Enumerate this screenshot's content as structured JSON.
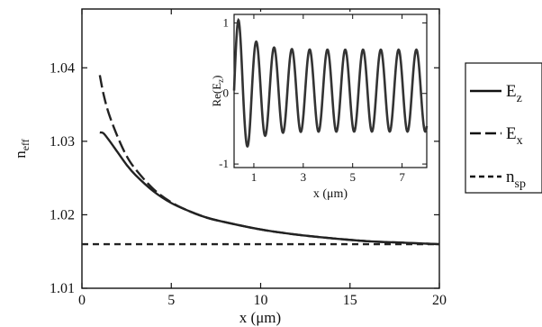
{
  "chart_data": [
    {
      "type": "line",
      "title": "",
      "xlabel": "x (μm)",
      "ylabel": "n",
      "ylabel_sub": "eff",
      "xlim": [
        0,
        20
      ],
      "ylim": [
        1.01,
        1.048
      ],
      "x_ticks": [
        0,
        5,
        10,
        15,
        20
      ],
      "x_tick_labels": [
        "0",
        "5",
        "10",
        "15",
        "20"
      ],
      "y_ticks": [
        1.01,
        1.02,
        1.03,
        1.04
      ],
      "y_tick_labels": [
        "1.01",
        "1.02",
        "1.03",
        "1.04"
      ],
      "grid": false,
      "legend_position": "outside-right",
      "series": [
        {
          "name": "E",
          "name_sub": "z",
          "style": "solid",
          "color": "#222222",
          "x": [
            1.0,
            1.2,
            1.5,
            2,
            2.5,
            3,
            4,
            5,
            6,
            7,
            8,
            10,
            12,
            14,
            16,
            18,
            20
          ],
          "y": [
            1.0312,
            1.0311,
            1.0302,
            1.0285,
            1.0268,
            1.0254,
            1.0232,
            1.0216,
            1.0205,
            1.0196,
            1.019,
            1.018,
            1.0173,
            1.0168,
            1.0164,
            1.0162,
            1.016
          ]
        },
        {
          "name": "E",
          "name_sub": "x",
          "style": "dash-long",
          "color": "#222222",
          "x": [
            1.0,
            1.2,
            1.5,
            2,
            2.5,
            3,
            4,
            5,
            6,
            7,
            8,
            10,
            12,
            14,
            16,
            18,
            20
          ],
          "y": [
            1.039,
            1.0365,
            1.0338,
            1.0306,
            1.028,
            1.0262,
            1.0235,
            1.0217,
            1.0205,
            1.0196,
            1.019,
            1.018,
            1.0173,
            1.0168,
            1.0164,
            1.0162,
            1.016
          ]
        },
        {
          "name": "n",
          "name_sub": "sp",
          "style": "dash-short",
          "color": "#222222",
          "x": [
            0,
            20
          ],
          "y": [
            1.016,
            1.016
          ]
        }
      ]
    },
    {
      "type": "line",
      "title": "",
      "placement": "inset",
      "xlabel": "x (μm)",
      "ylabel": "Re(E",
      "ylabel_sub": "z",
      "ylabel_tail": ")",
      "xlim": [
        0.2,
        8.0
      ],
      "ylim": [
        -1.05,
        1.12
      ],
      "x_ticks": [
        1,
        3,
        5,
        7
      ],
      "x_tick_labels": [
        "1",
        "3",
        "5",
        "7"
      ],
      "y_ticks": [
        -1,
        0,
        1
      ],
      "y_tick_labels": [
        "-1",
        "0",
        "1"
      ],
      "series": [
        {
          "name": "",
          "style": "solid",
          "color": "#333333",
          "x_start": 0.2,
          "x_end": 8.0,
          "period_um": 0.72,
          "phase_peak_x": 0.38,
          "offset": 0.04,
          "amplitude_start": 1.0,
          "amplitude_steady": 0.58,
          "decay_um": 0.55,
          "first_trough": -0.75
        }
      ]
    }
  ],
  "legend": {
    "entries": [
      {
        "name": "E",
        "sub": "z",
        "style": "solid"
      },
      {
        "name": "E",
        "sub": "x",
        "style": "dash-long"
      },
      {
        "name": "n",
        "sub": "sp",
        "style": "dash-short"
      }
    ]
  }
}
